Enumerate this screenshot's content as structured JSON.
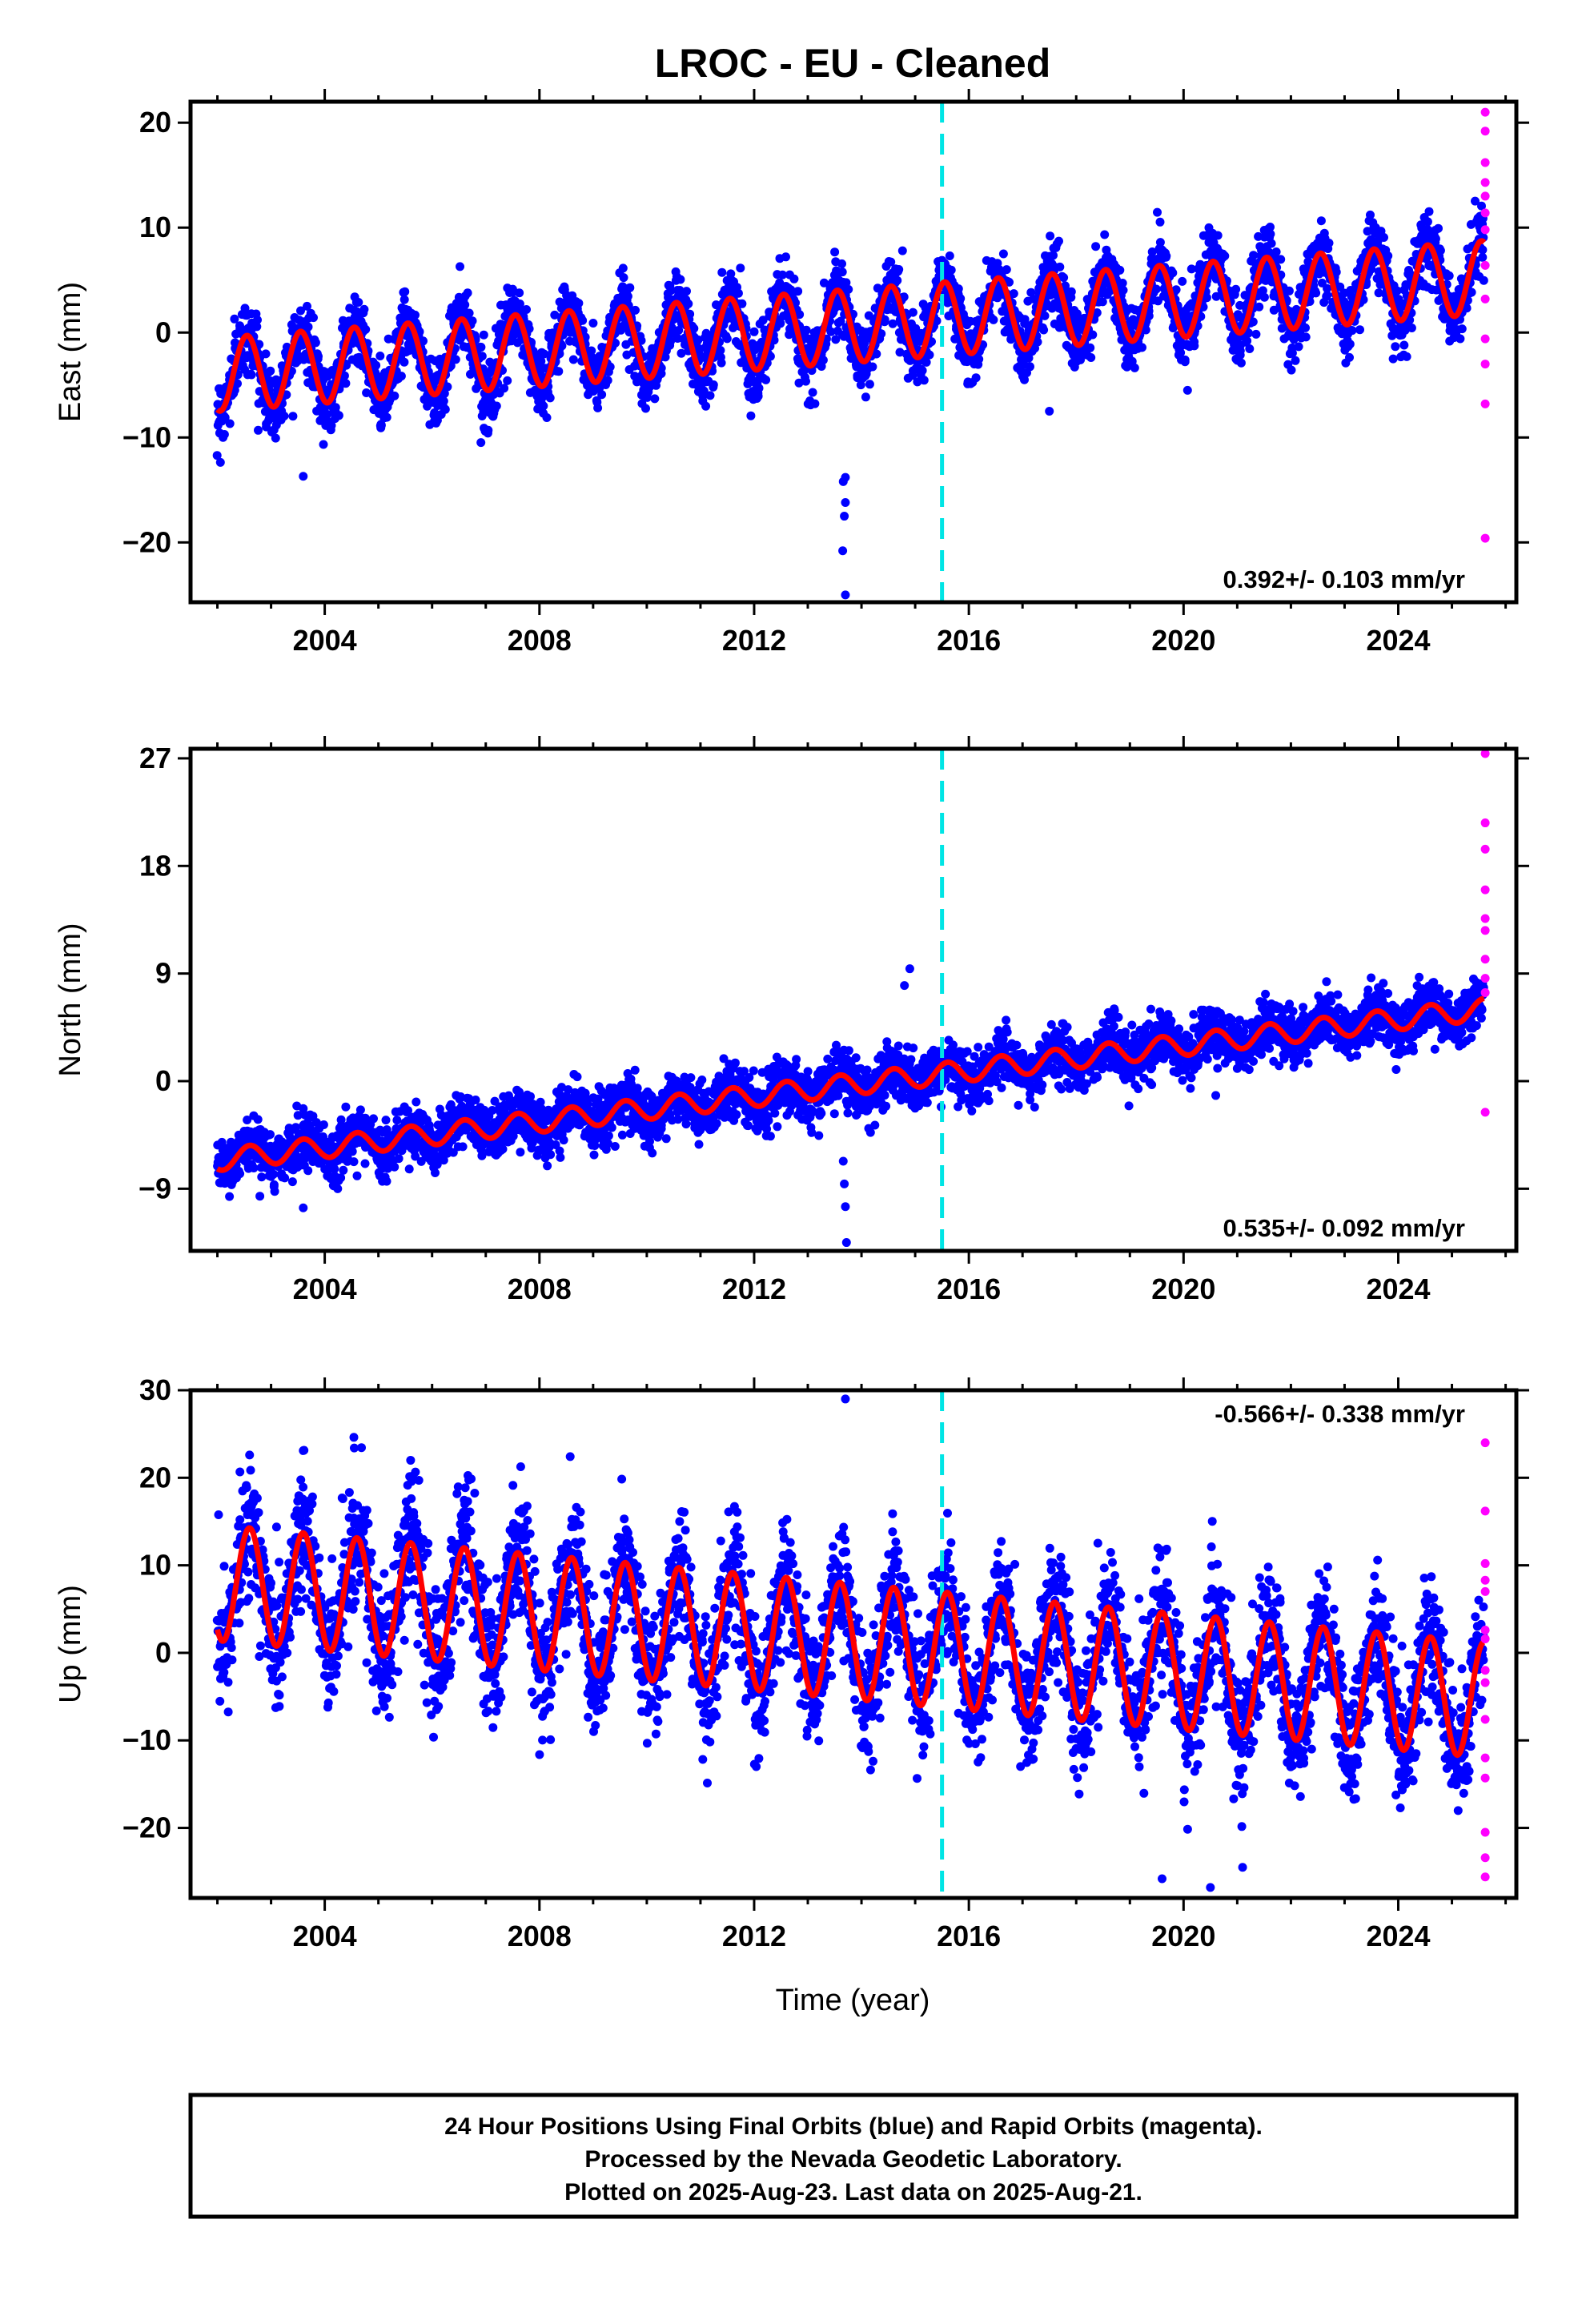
{
  "chart_data": {
    "title": "LROC  - EU - Cleaned",
    "xlabel": "Time (year)",
    "xlim": [
      2001.5,
      2026.2
    ],
    "xticks": [
      2004,
      2008,
      2012,
      2016,
      2020,
      2024
    ],
    "xtick_labels": [
      "2004",
      "2008",
      "2012",
      "2016",
      "2020",
      "2024"
    ],
    "event_line": {
      "x": 2015.5,
      "color": "#00e5e5",
      "style": "dashed"
    },
    "colors": {
      "final": "#0000ff",
      "rapid": "#ff00ff",
      "model": "#ff0000"
    },
    "panels": [
      {
        "type": "scatter",
        "ylabel": "East (mm)",
        "ylim": [
          -25.7,
          22
        ],
        "yticks": [
          20,
          10,
          0,
          -10,
          -20
        ],
        "ytick_labels": [
          "20",
          "10",
          "0",
          "−10",
          "−20"
        ],
        "rate_label": "0.392+/- 0.103 mm/yr",
        "rate_position": "bottom-right",
        "model": {
          "start": 2002.0,
          "end": 2025.6,
          "value_start": -4.0,
          "trend": 0.392,
          "amplitude": 3.5,
          "amplitude_change_per_year": 0.0,
          "phase_year": 0.55
        },
        "scatter": {
          "noise": 1.6,
          "n_per_year": 170
        },
        "outliers": [
          [
            2013.7,
            -25.0
          ],
          [
            2013.65,
            -20.8
          ],
          [
            2013.68,
            -17.5
          ],
          [
            2013.7,
            -16.2
          ],
          [
            2013.66,
            -14.2
          ],
          [
            2013.7,
            -13.8
          ],
          [
            2003.6,
            -13.7
          ],
          [
            2017.5,
            -7.5
          ]
        ],
        "rapid": [
          [
            2025.62,
            21.0
          ],
          [
            2025.62,
            19.2
          ],
          [
            2025.62,
            16.2
          ],
          [
            2025.62,
            14.3
          ],
          [
            2025.62,
            13.0
          ],
          [
            2025.62,
            11.4
          ],
          [
            2025.62,
            9.8
          ],
          [
            2025.62,
            6.4
          ],
          [
            2025.62,
            3.2
          ],
          [
            2025.62,
            -0.6
          ],
          [
            2025.62,
            -3.0
          ],
          [
            2025.62,
            -6.8
          ],
          [
            2025.62,
            -19.6
          ]
        ]
      },
      {
        "type": "scatter",
        "ylabel": "North (mm)",
        "ylim": [
          -14.2,
          27.8
        ],
        "yticks": [
          27,
          18,
          9,
          0,
          -9
        ],
        "ytick_labels": [
          "27",
          "18",
          "9",
          "0",
          "−9"
        ],
        "rate_label": "0.535+/- 0.092 mm/yr",
        "rate_position": "bottom-right",
        "model": {
          "start": 2002.0,
          "end": 2025.6,
          "value_start": -6.6,
          "trend": 0.535,
          "amplitude": 0.9,
          "amplitude_change_per_year": 0.0,
          "phase_year": 0.6
        },
        "scatter": {
          "noise": 1.1,
          "n_per_year": 170
        },
        "outliers": [
          [
            2013.72,
            -13.5
          ],
          [
            2013.7,
            -10.5
          ],
          [
            2013.68,
            -8.6
          ],
          [
            2013.66,
            -6.7
          ],
          [
            2014.9,
            9.4
          ],
          [
            2014.8,
            8.0
          ],
          [
            2003.6,
            -10.6
          ],
          [
            2020.6,
            -1.2
          ]
        ],
        "rapid": [
          [
            2025.62,
            27.4
          ],
          [
            2025.62,
            21.6
          ],
          [
            2025.62,
            19.4
          ],
          [
            2025.62,
            16.0
          ],
          [
            2025.62,
            13.6
          ],
          [
            2025.62,
            12.6
          ],
          [
            2025.62,
            10.2
          ],
          [
            2025.62,
            8.6
          ],
          [
            2025.62,
            7.4
          ],
          [
            2025.62,
            -2.6
          ]
        ]
      },
      {
        "type": "scatter",
        "ylabel": "Up (mm)",
        "ylim": [
          -28,
          30
        ],
        "yticks": [
          30,
          20,
          10,
          0,
          -10,
          -20
        ],
        "ytick_labels": [
          "30",
          "20",
          "10",
          "0",
          "−10",
          "−20"
        ],
        "rate_label": "-0.566+/- 0.338 mm/yr",
        "rate_position": "top-right",
        "model": {
          "start": 2002.0,
          "end": 2025.6,
          "value_start": 8.0,
          "trend": -0.566,
          "amplitude": 6.6,
          "amplitude_change_per_year": 0.0,
          "phase_year": 0.6
        },
        "scatter": {
          "noise": 3.6,
          "n_per_year": 170
        },
        "outliers": [
          [
            2013.7,
            29.0
          ],
          [
            2004.55,
            23.4
          ],
          [
            2003.6,
            23.1
          ],
          [
            2002.6,
            22.6
          ],
          [
            2005.6,
            22.0
          ],
          [
            2020.5,
            -26.8
          ],
          [
            2019.6,
            -25.8
          ],
          [
            2021.1,
            -24.5
          ]
        ],
        "rapid": [
          [
            2025.62,
            24.0
          ],
          [
            2025.62,
            16.2
          ],
          [
            2025.62,
            10.2
          ],
          [
            2025.62,
            8.3
          ],
          [
            2025.62,
            7.0
          ],
          [
            2025.62,
            2.6
          ],
          [
            2025.62,
            1.6
          ],
          [
            2025.62,
            -2.0
          ],
          [
            2025.62,
            -3.4
          ],
          [
            2025.62,
            -7.6
          ],
          [
            2025.62,
            -12.0
          ],
          [
            2025.62,
            -14.3
          ],
          [
            2025.62,
            -20.5
          ],
          [
            2025.62,
            -23.4
          ],
          [
            2025.62,
            -25.6
          ]
        ]
      }
    ]
  },
  "footer": {
    "line1": "24 Hour Positions Using Final Orbits (blue) and Rapid Orbits (magenta).",
    "line2": "Processed by the Nevada Geodetic Laboratory.",
    "line3": "Plotted on 2025-Aug-23. Last data on 2025-Aug-21."
  }
}
